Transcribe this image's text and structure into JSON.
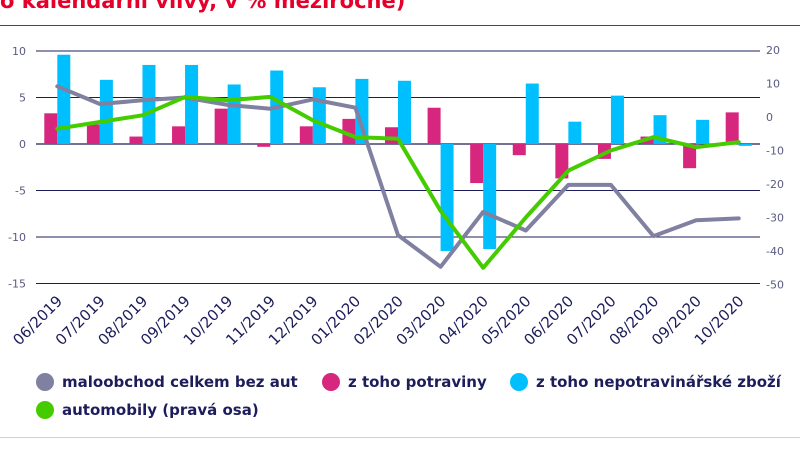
{
  "title": "o kalendářní vlivy, v % meziročně)",
  "chart_data": {
    "type": "bar",
    "categories": [
      "06/2019",
      "07/2019",
      "08/2019",
      "09/2019",
      "10/2019",
      "11/2019",
      "12/2019",
      "01/2020",
      "02/2020",
      "03/2020",
      "04/2020",
      "05/2020",
      "06/2020",
      "07/2020",
      "08/2020",
      "09/2020",
      "10/2020"
    ],
    "left_axis": {
      "ylim": [
        -15,
        10
      ],
      "ticks": [
        10,
        5,
        0,
        -5,
        -10,
        -15
      ]
    },
    "right_axis": {
      "ylim": [
        -50,
        25
      ],
      "ticks": [
        20,
        10,
        0,
        -10,
        -20,
        -30,
        -40,
        -50
      ]
    },
    "series": [
      {
        "name": "maloobchod celkem bez aut",
        "type": "line",
        "axis": "left",
        "color": "#8080a0",
        "values": [
          6.2,
          4.3,
          4.7,
          5.0,
          4.2,
          3.8,
          4.8,
          3.9,
          -9.8,
          -13.2,
          -7.3,
          -9.3,
          -4.4,
          -4.4,
          -9.9,
          -8.2,
          -8.0
        ]
      },
      {
        "name": "z toho potraviny",
        "type": "bar",
        "axis": "left",
        "color": "#d6267d",
        "values": [
          3.3,
          2.1,
          0.8,
          1.9,
          3.8,
          -0.3,
          1.9,
          2.7,
          1.8,
          3.9,
          -4.2,
          -1.2,
          -3.7,
          -1.6,
          0.8,
          -2.6,
          3.4
        ]
      },
      {
        "name": "z toho nepotravinářské zboží",
        "type": "bar",
        "axis": "left",
        "color": "#00bfff",
        "values": [
          9.6,
          6.9,
          8.5,
          8.5,
          6.4,
          7.9,
          6.1,
          7.0,
          6.8,
          -11.5,
          -11.3,
          6.5,
          2.4,
          5.2,
          3.1,
          2.6,
          -0.2
        ]
      },
      {
        "name": "automobily (pravá osa)",
        "type": "line",
        "axis": "right",
        "color": "#44cc00",
        "values": [
          -3.5,
          -1.5,
          0.5,
          6.0,
          5.0,
          6.0,
          -1.0,
          -6.0,
          -6.5,
          -28.0,
          -45.0,
          -30.0,
          -16.0,
          -10.0,
          -6.0,
          -9.0,
          -7.5
        ]
      }
    ],
    "legend": "bottom",
    "grid": true
  },
  "legend_items": [
    {
      "label": "maloobchod celkem bez aut",
      "color": "#8080a0"
    },
    {
      "label": "z toho potraviny",
      "color": "#d6267d"
    },
    {
      "label": "z toho nepotravinářské zboží",
      "color": "#00bfff"
    },
    {
      "label": "automobily (pravá osa)",
      "color": "#44cc00"
    }
  ]
}
